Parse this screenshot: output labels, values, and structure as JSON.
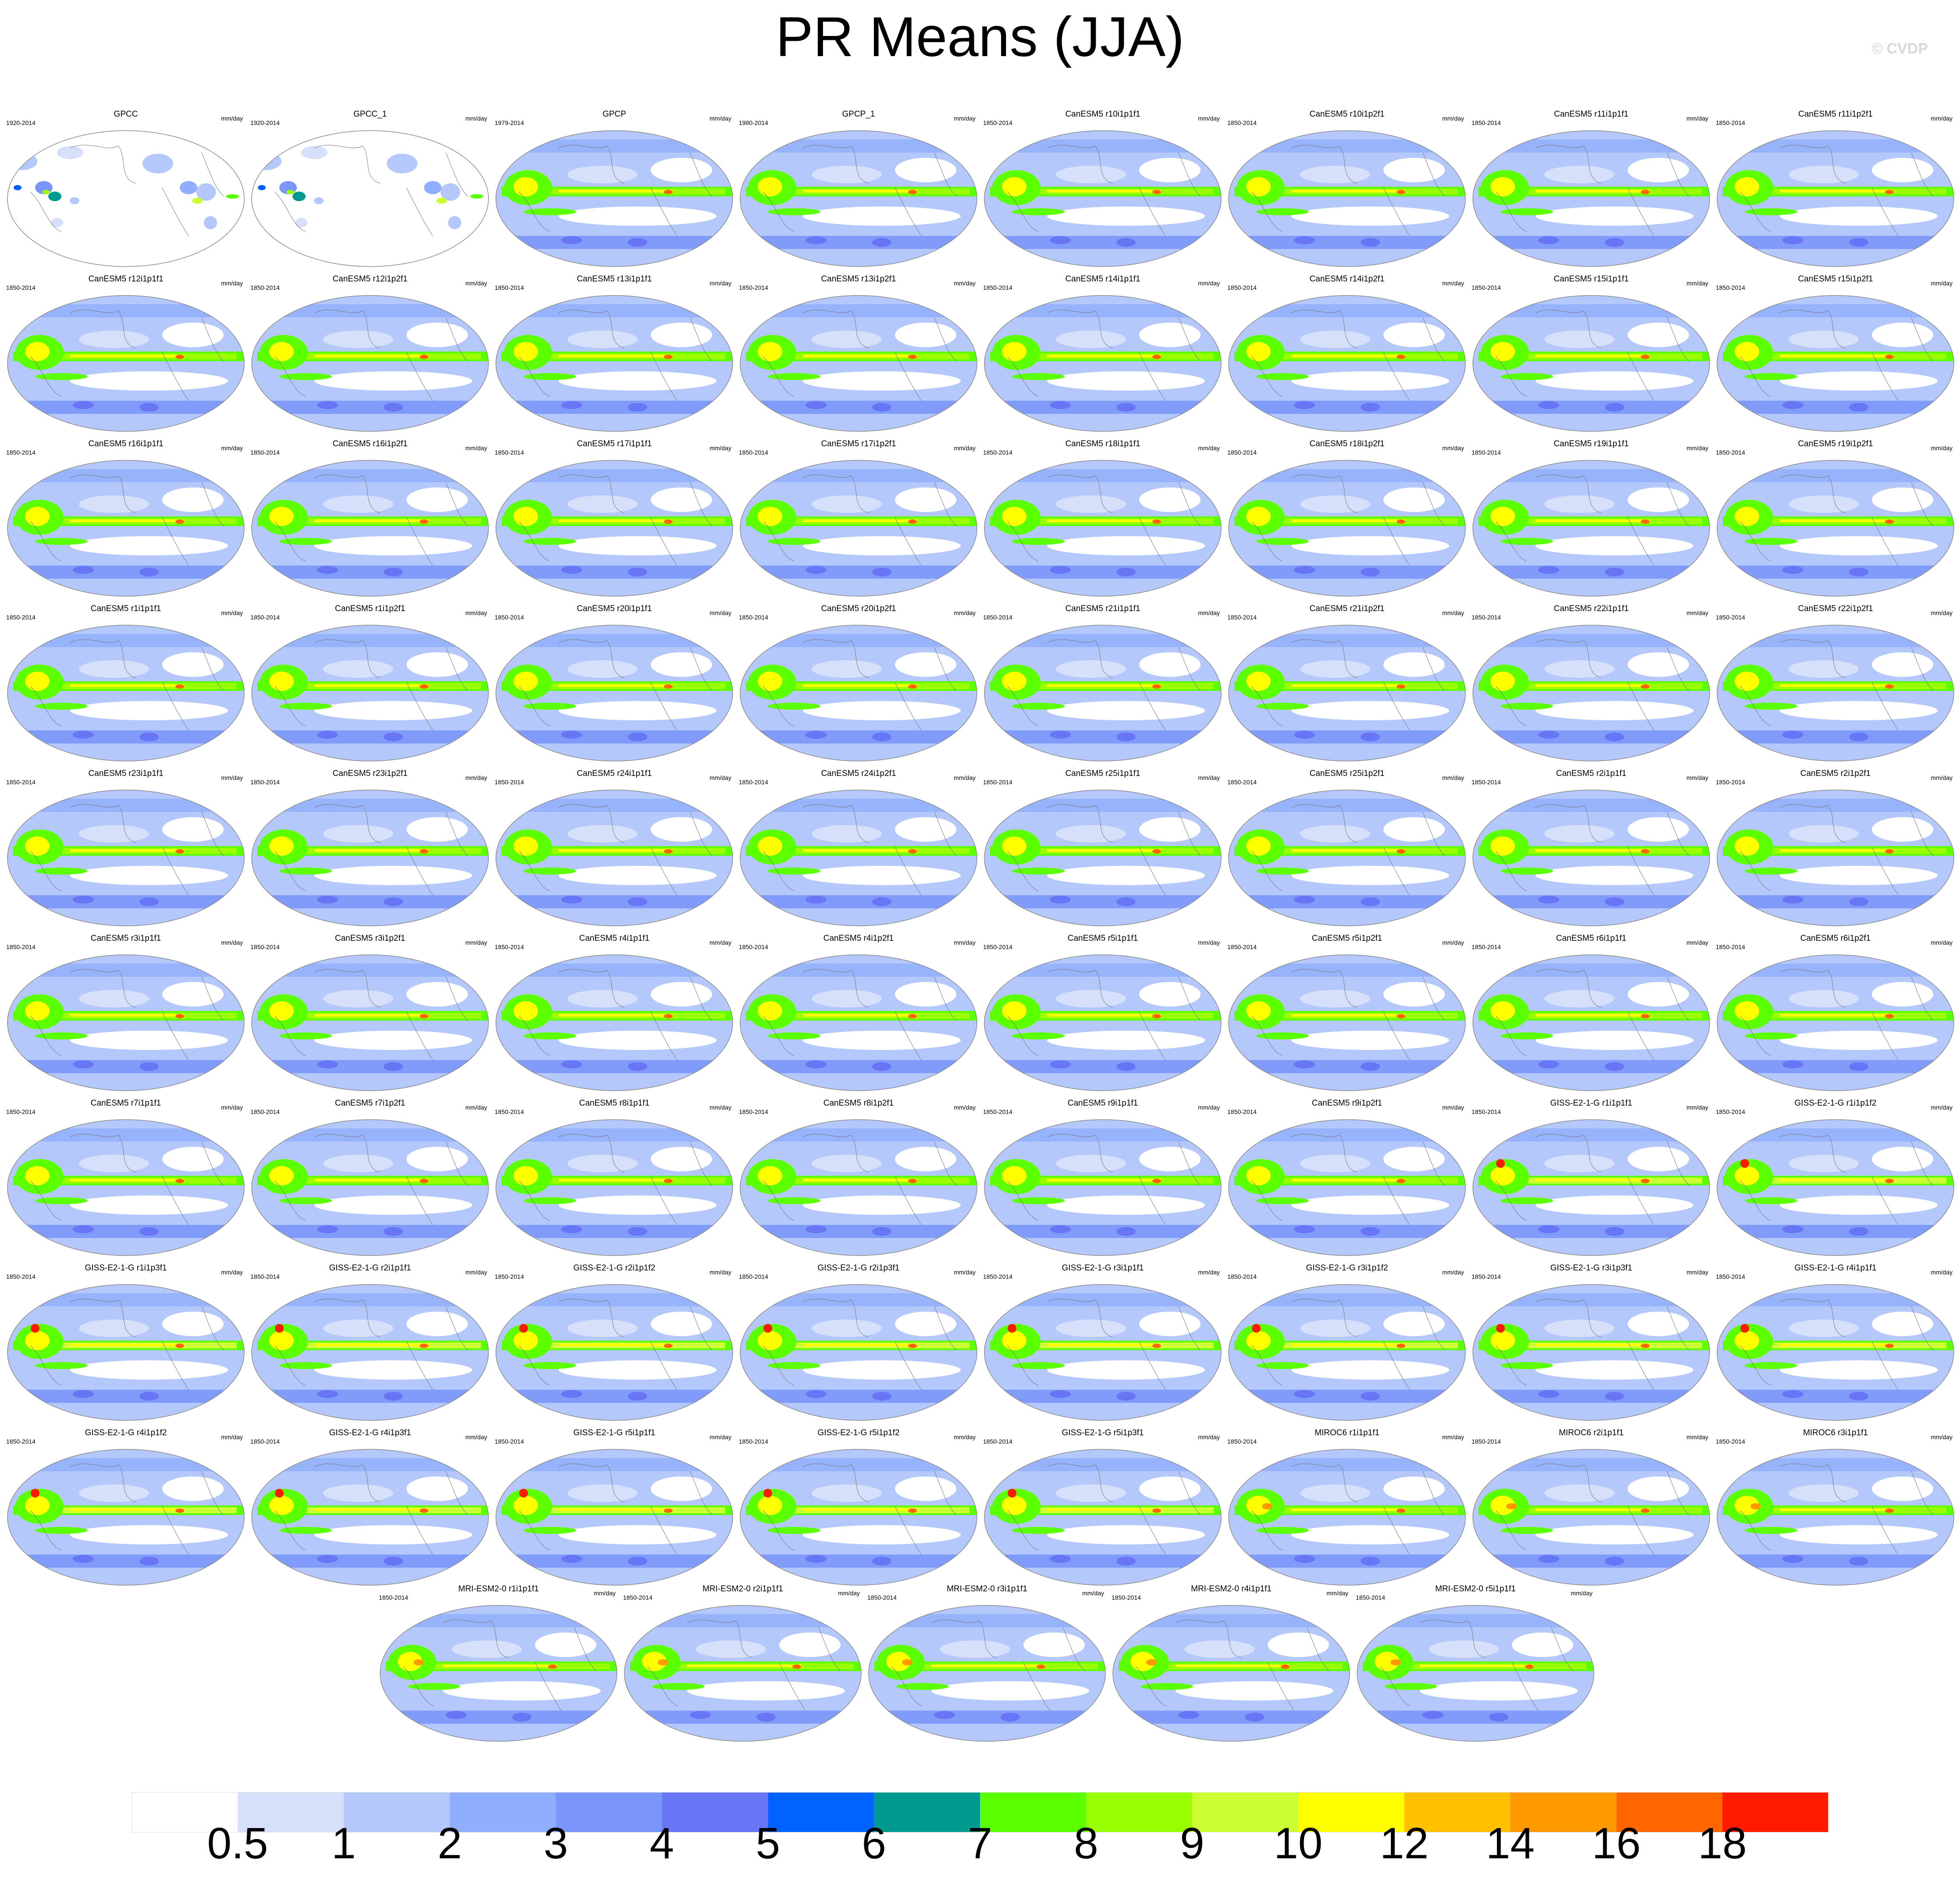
{
  "title": "PR Means (JJA)",
  "credit": "© CVDP",
  "units": "mm/day",
  "colorbar": {
    "colors": [
      "#ffffff",
      "#d6e0fa",
      "#b5c8fb",
      "#8faefd",
      "#7b96fb",
      "#6875f5",
      "#0062ff",
      "#00998f",
      "#5cff00",
      "#99ff00",
      "#ccff33",
      "#ffff00",
      "#ffc000",
      "#ff9900",
      "#ff6600",
      "#ff1a00"
    ],
    "levels": [
      "0.5",
      "1",
      "2",
      "3",
      "4",
      "5",
      "6",
      "7",
      "8",
      "9",
      "10",
      "12",
      "14",
      "16",
      "18"
    ]
  },
  "chart_data": {
    "type": "heatmap",
    "variable": "PR",
    "season": "JJA",
    "units": "mm/day",
    "contour_levels": [
      0.5,
      1,
      2,
      3,
      4,
      5,
      6,
      7,
      8,
      9,
      10,
      12,
      14,
      16,
      18
    ],
    "panels": [
      {
        "name": "GPCC",
        "years": "1920-2014"
      },
      {
        "name": "GPCC_1",
        "years": "1920-2014"
      },
      {
        "name": "GPCP",
        "years": "1979-2014"
      },
      {
        "name": "GPCP_1",
        "years": "1980-2014"
      },
      {
        "name": "CanESM5 r10i1p1f1",
        "years": "1850-2014"
      },
      {
        "name": "CanESM5 r10i1p2f1",
        "years": "1850-2014"
      },
      {
        "name": "CanESM5 r11i1p1f1",
        "years": "1850-2014"
      },
      {
        "name": "CanESM5 r11i1p2f1",
        "years": "1850-2014"
      },
      {
        "name": "CanESM5 r12i1p1f1",
        "years": "1850-2014"
      },
      {
        "name": "CanESM5 r12i1p2f1",
        "years": "1850-2014"
      },
      {
        "name": "CanESM5 r13i1p1f1",
        "years": "1850-2014"
      },
      {
        "name": "CanESM5 r13i1p2f1",
        "years": "1850-2014"
      },
      {
        "name": "CanESM5 r14i1p1f1",
        "years": "1850-2014"
      },
      {
        "name": "CanESM5 r14i1p2f1",
        "years": "1850-2014"
      },
      {
        "name": "CanESM5 r15i1p1f1",
        "years": "1850-2014"
      },
      {
        "name": "CanESM5 r15i1p2f1",
        "years": "1850-2014"
      },
      {
        "name": "CanESM5 r16i1p1f1",
        "years": "1850-2014"
      },
      {
        "name": "CanESM5 r16i1p2f1",
        "years": "1850-2014"
      },
      {
        "name": "CanESM5 r17i1p1f1",
        "years": "1850-2014"
      },
      {
        "name": "CanESM5 r17i1p2f1",
        "years": "1850-2014"
      },
      {
        "name": "CanESM5 r18i1p1f1",
        "years": "1850-2014"
      },
      {
        "name": "CanESM5 r18i1p2f1",
        "years": "1850-2014"
      },
      {
        "name": "CanESM5 r19i1p1f1",
        "years": "1850-2014"
      },
      {
        "name": "CanESM5 r19i1p2f1",
        "years": "1850-2014"
      },
      {
        "name": "CanESM5 r1i1p1f1",
        "years": "1850-2014"
      },
      {
        "name": "CanESM5 r1i1p2f1",
        "years": "1850-2014"
      },
      {
        "name": "CanESM5 r20i1p1f1",
        "years": "1850-2014"
      },
      {
        "name": "CanESM5 r20i1p2f1",
        "years": "1850-2014"
      },
      {
        "name": "CanESM5 r21i1p1f1",
        "years": "1850-2014"
      },
      {
        "name": "CanESM5 r21i1p2f1",
        "years": "1850-2014"
      },
      {
        "name": "CanESM5 r22i1p1f1",
        "years": "1850-2014"
      },
      {
        "name": "CanESM5 r22i1p2f1",
        "years": "1850-2014"
      },
      {
        "name": "CanESM5 r23i1p1f1",
        "years": "1850-2014"
      },
      {
        "name": "CanESM5 r23i1p2f1",
        "years": "1850-2014"
      },
      {
        "name": "CanESM5 r24i1p1f1",
        "years": "1850-2014"
      },
      {
        "name": "CanESM5 r24i1p2f1",
        "years": "1850-2014"
      },
      {
        "name": "CanESM5 r25i1p1f1",
        "years": "1850-2014"
      },
      {
        "name": "CanESM5 r25i1p2f1",
        "years": "1850-2014"
      },
      {
        "name": "CanESM5 r2i1p1f1",
        "years": "1850-2014"
      },
      {
        "name": "CanESM5 r2i1p2f1",
        "years": "1850-2014"
      },
      {
        "name": "CanESM5 r3i1p1f1",
        "years": "1850-2014"
      },
      {
        "name": "CanESM5 r3i1p2f1",
        "years": "1850-2014"
      },
      {
        "name": "CanESM5 r4i1p1f1",
        "years": "1850-2014"
      },
      {
        "name": "CanESM5 r4i1p2f1",
        "years": "1850-2014"
      },
      {
        "name": "CanESM5 r5i1p1f1",
        "years": "1850-2014"
      },
      {
        "name": "CanESM5 r5i1p2f1",
        "years": "1850-2014"
      },
      {
        "name": "CanESM5 r6i1p1f1",
        "years": "1850-2014"
      },
      {
        "name": "CanESM5 r6i1p2f1",
        "years": "1850-2014"
      },
      {
        "name": "CanESM5 r7i1p1f1",
        "years": "1850-2014"
      },
      {
        "name": "CanESM5 r7i1p2f1",
        "years": "1850-2014"
      },
      {
        "name": "CanESM5 r8i1p1f1",
        "years": "1850-2014"
      },
      {
        "name": "CanESM5 r8i1p2f1",
        "years": "1850-2014"
      },
      {
        "name": "CanESM5 r9i1p1f1",
        "years": "1850-2014"
      },
      {
        "name": "CanESM5 r9i1p2f1",
        "years": "1850-2014"
      },
      {
        "name": "GISS-E2-1-G r1i1p1f1",
        "years": "1850-2014"
      },
      {
        "name": "GISS-E2-1-G r1i1p1f2",
        "years": "1850-2014"
      },
      {
        "name": "GISS-E2-1-G r1i1p3f1",
        "years": "1850-2014"
      },
      {
        "name": "GISS-E2-1-G r2i1p1f1",
        "years": "1850-2014"
      },
      {
        "name": "GISS-E2-1-G r2i1p1f2",
        "years": "1850-2014"
      },
      {
        "name": "GISS-E2-1-G r2i1p3f1",
        "years": "1850-2014"
      },
      {
        "name": "GISS-E2-1-G r3i1p1f1",
        "years": "1850-2014"
      },
      {
        "name": "GISS-E2-1-G r3i1p1f2",
        "years": "1850-2014"
      },
      {
        "name": "GISS-E2-1-G r3i1p3f1",
        "years": "1850-2014"
      },
      {
        "name": "GISS-E2-1-G r4i1p1f1",
        "years": "1850-2014"
      },
      {
        "name": "GISS-E2-1-G r4i1p1f2",
        "years": "1850-2014"
      },
      {
        "name": "GISS-E2-1-G r4i1p3f1",
        "years": "1850-2014"
      },
      {
        "name": "GISS-E2-1-G r5i1p1f1",
        "years": "1850-2014"
      },
      {
        "name": "GISS-E2-1-G r5i1p1f2",
        "years": "1850-2014"
      },
      {
        "name": "GISS-E2-1-G r5i1p3f1",
        "years": "1850-2014"
      },
      {
        "name": "MIROC6 r1i1p1f1",
        "years": "1850-2014"
      },
      {
        "name": "MIROC6 r2i1p1f1",
        "years": "1850-2014"
      },
      {
        "name": "MIROC6 r3i1p1f1",
        "years": "1850-2014"
      },
      {
        "name": "MRI-ESM2-0 r1i1p1f1",
        "years": "1850-2014"
      },
      {
        "name": "MRI-ESM2-0 r2i1p1f1",
        "years": "1850-2014"
      },
      {
        "name": "MRI-ESM2-0 r3i1p1f1",
        "years": "1850-2014"
      },
      {
        "name": "MRI-ESM2-0 r4i1p1f1",
        "years": "1850-2014"
      },
      {
        "name": "MRI-ESM2-0 r5i1p1f1",
        "years": "1850-2014"
      }
    ]
  }
}
